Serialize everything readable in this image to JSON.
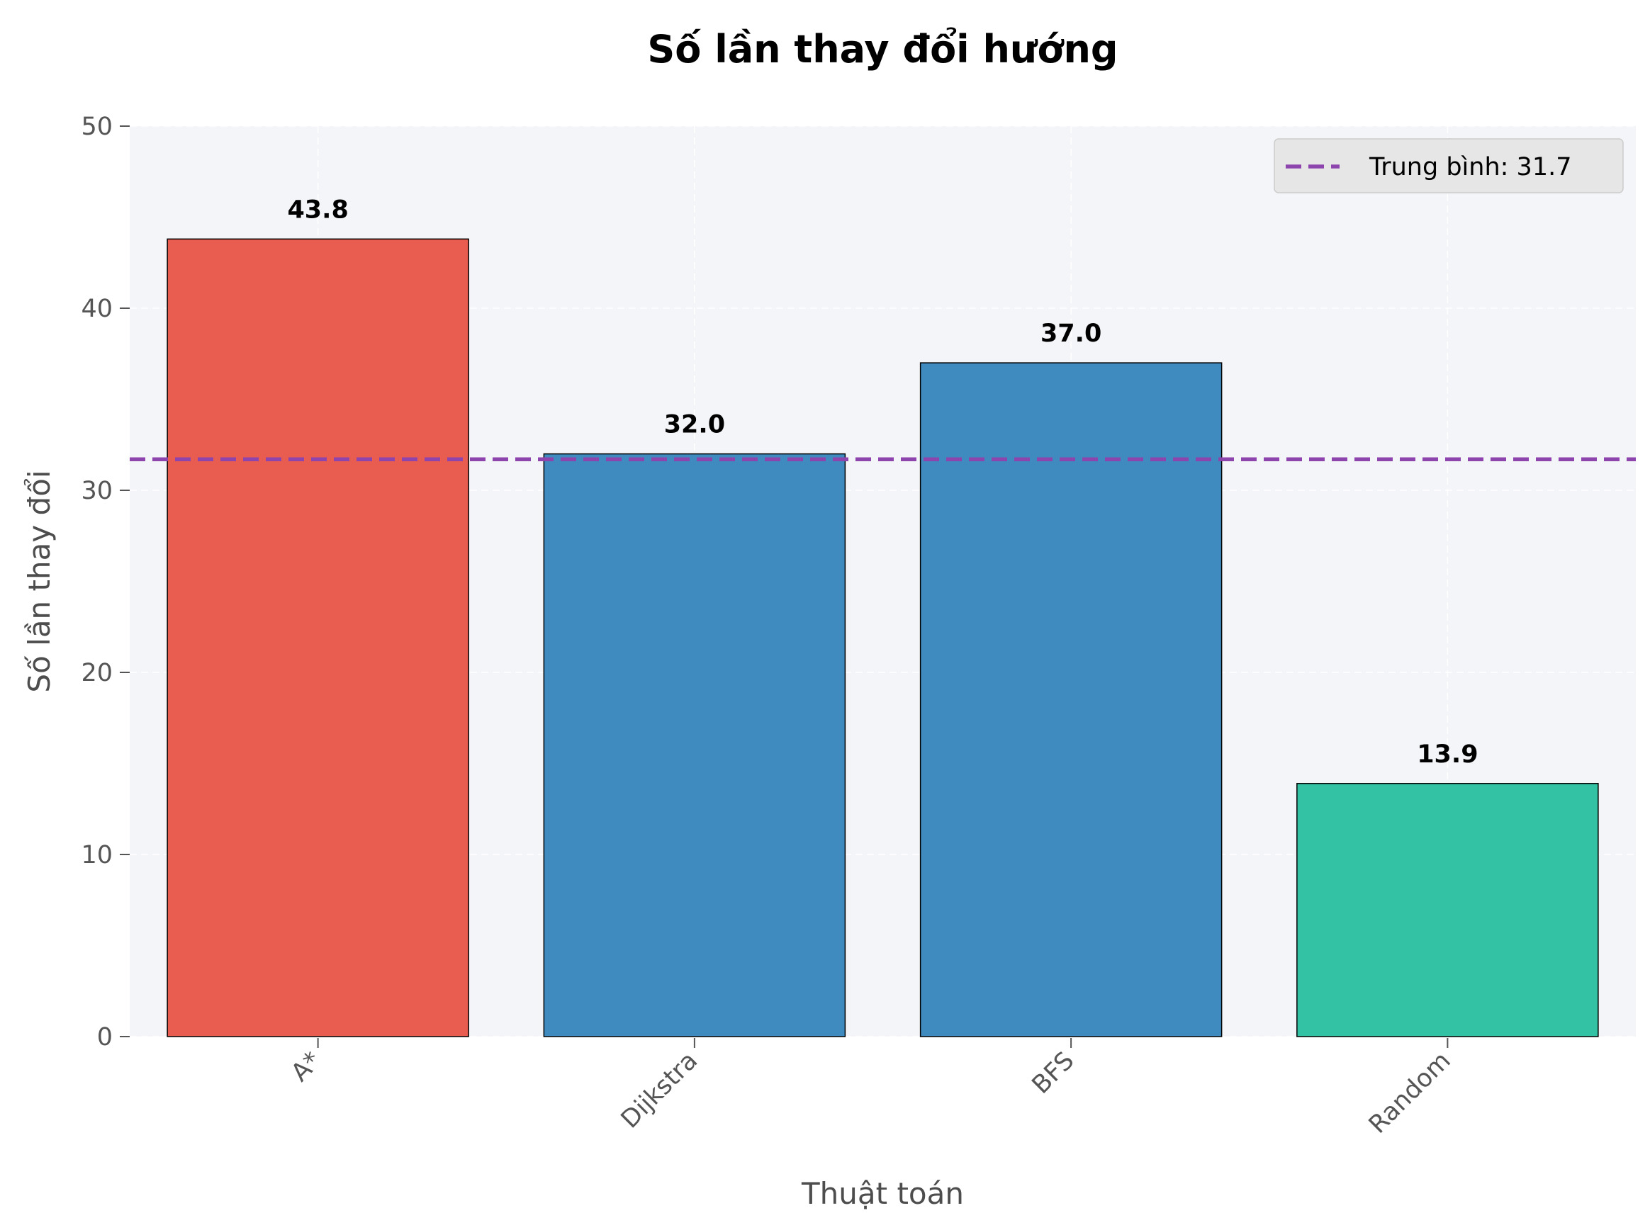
{
  "chart_data": {
    "type": "bar",
    "title": "Số lần thay đổi hướng",
    "xlabel": "Thuật toán",
    "ylabel": "Số lần thay đổi",
    "categories": [
      "A*",
      "Dijkstra",
      "BFS",
      "Random"
    ],
    "values": [
      43.8,
      32.0,
      37.0,
      13.9
    ],
    "value_labels": [
      "43.8",
      "32.0",
      "37.0",
      "13.9"
    ],
    "bar_colors": [
      "#e85d50",
      "#3f8bbf",
      "#3f8bbf",
      "#33c2a4"
    ],
    "ylim": [
      0,
      50
    ],
    "yticks": [
      0,
      10,
      20,
      30,
      40,
      50
    ],
    "grid": true,
    "reference_line": {
      "value": 31.7,
      "label": "Trung bình: 31.7",
      "color": "#8e44ad",
      "style": "dashed"
    },
    "legend_position": "top-right",
    "plot_background": "#f4f5f8"
  }
}
